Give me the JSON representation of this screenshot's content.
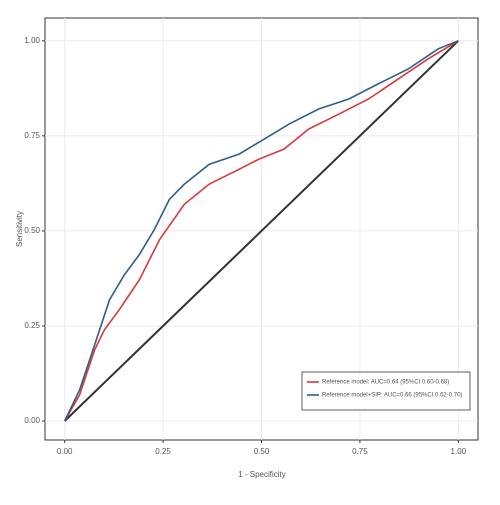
{
  "chart_data": {
    "type": "line",
    "x_label": "1 - Specificity",
    "y_label": "Sensitivity",
    "xlim": [
      -0.05,
      1.05
    ],
    "ylim": [
      -0.05,
      1.06
    ],
    "xticks": [
      {
        "value": 0,
        "label": "0.00"
      },
      {
        "value": 0.25,
        "label": "0.25"
      },
      {
        "value": 0.5,
        "label": "0.50"
      },
      {
        "value": 0.75,
        "label": "0.75"
      },
      {
        "value": 1,
        "label": "1.00"
      }
    ],
    "yticks": [
      {
        "value": 0,
        "label": "0.00"
      },
      {
        "value": 0.25,
        "label": "0.25"
      },
      {
        "value": 0.5,
        "label": "0.50"
      },
      {
        "value": 0.75,
        "label": "0.75"
      },
      {
        "value": 1,
        "label": "1.00"
      }
    ],
    "grid": true,
    "legend": "lower right",
    "reference_line": {
      "x": [
        0,
        1
      ],
      "values": [
        0,
        1
      ],
      "color": "#333333"
    },
    "series": [
      {
        "name": "Reference model: AUC=0.64 (95%CI 0.60-0.68)",
        "color": "#d9383a",
        "x": [
          0,
          0.038,
          0.076,
          0.101,
          0.139,
          0.19,
          0.241,
          0.304,
          0.367,
          0.443,
          0.494,
          0.557,
          0.62,
          0.696,
          0.772,
          0.848,
          0.924,
          1
        ],
        "values": [
          0,
          0.069,
          0.187,
          0.24,
          0.293,
          0.372,
          0.477,
          0.57,
          0.623,
          0.662,
          0.689,
          0.715,
          0.768,
          0.807,
          0.847,
          0.9,
          0.953,
          1
        ]
      },
      {
        "name": "Reference model+SIP: AUC=0.66 (95%CI 0.62-0.70)",
        "color": "#2e5f8a",
        "x": [
          0,
          0.038,
          0.076,
          0.114,
          0.152,
          0.19,
          0.228,
          0.266,
          0.304,
          0.367,
          0.443,
          0.506,
          0.57,
          0.646,
          0.722,
          0.797,
          0.873,
          0.949,
          1
        ],
        "values": [
          0,
          0.082,
          0.2,
          0.319,
          0.385,
          0.438,
          0.504,
          0.583,
          0.623,
          0.675,
          0.702,
          0.741,
          0.781,
          0.821,
          0.847,
          0.887,
          0.926,
          0.979,
          1
        ]
      }
    ]
  }
}
